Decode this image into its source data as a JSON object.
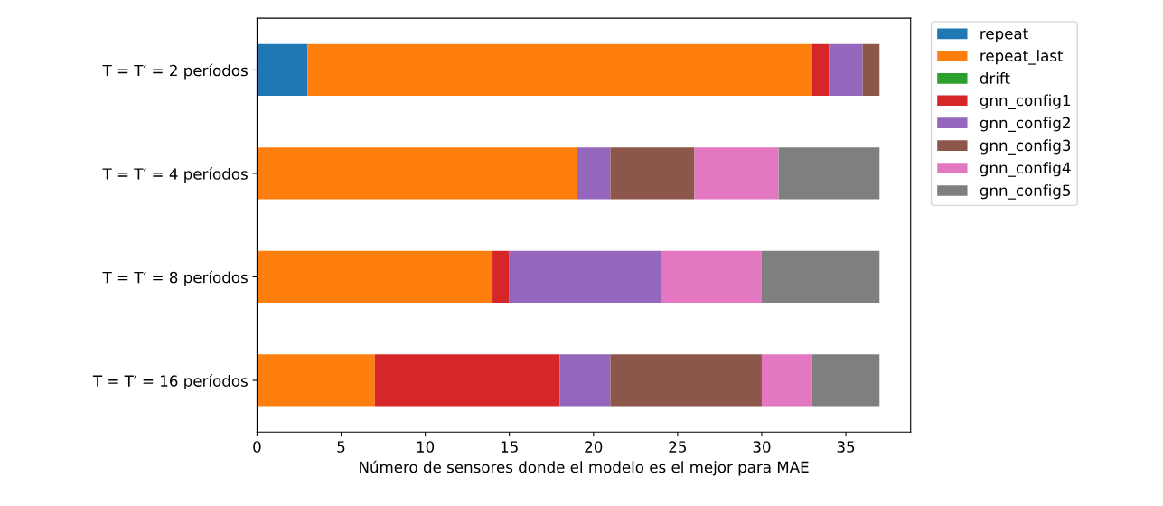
{
  "chart_data": {
    "type": "bar",
    "orientation": "horizontal",
    "stacked": true,
    "categories": [
      "T = T′ = 2 períodos",
      "T = T′ = 4 períodos",
      "T = T′ = 8 períodos",
      "T = T′ = 16 períodos"
    ],
    "series": [
      {
        "name": "repeat",
        "color": "#1f77b4",
        "values": [
          3,
          0,
          0,
          0
        ]
      },
      {
        "name": "repeat_last",
        "color": "#ff7f0e",
        "values": [
          30,
          19,
          14,
          7
        ]
      },
      {
        "name": "drift",
        "color": "#2ca02c",
        "values": [
          0,
          0,
          0,
          0
        ]
      },
      {
        "name": "gnn_config1",
        "color": "#d62728",
        "values": [
          1,
          0,
          1,
          11
        ]
      },
      {
        "name": "gnn_config2",
        "color": "#9467bd",
        "values": [
          2,
          2,
          9,
          3
        ]
      },
      {
        "name": "gnn_config3",
        "color": "#8c564b",
        "values": [
          1,
          5,
          0,
          9
        ]
      },
      {
        "name": "gnn_config4",
        "color": "#e377c2",
        "values": [
          0,
          5,
          6,
          3
        ]
      },
      {
        "name": "gnn_config5",
        "color": "#7f7f7f",
        "values": [
          0,
          6,
          7,
          4
        ]
      }
    ],
    "xlabel": "Número de sensores donde el modelo es el mejor para MAE",
    "xlim": [
      0,
      38.85
    ],
    "xticks": [
      0,
      5,
      10,
      15,
      20,
      25,
      30,
      35
    ],
    "legend": "top right",
    "grid": false
  }
}
